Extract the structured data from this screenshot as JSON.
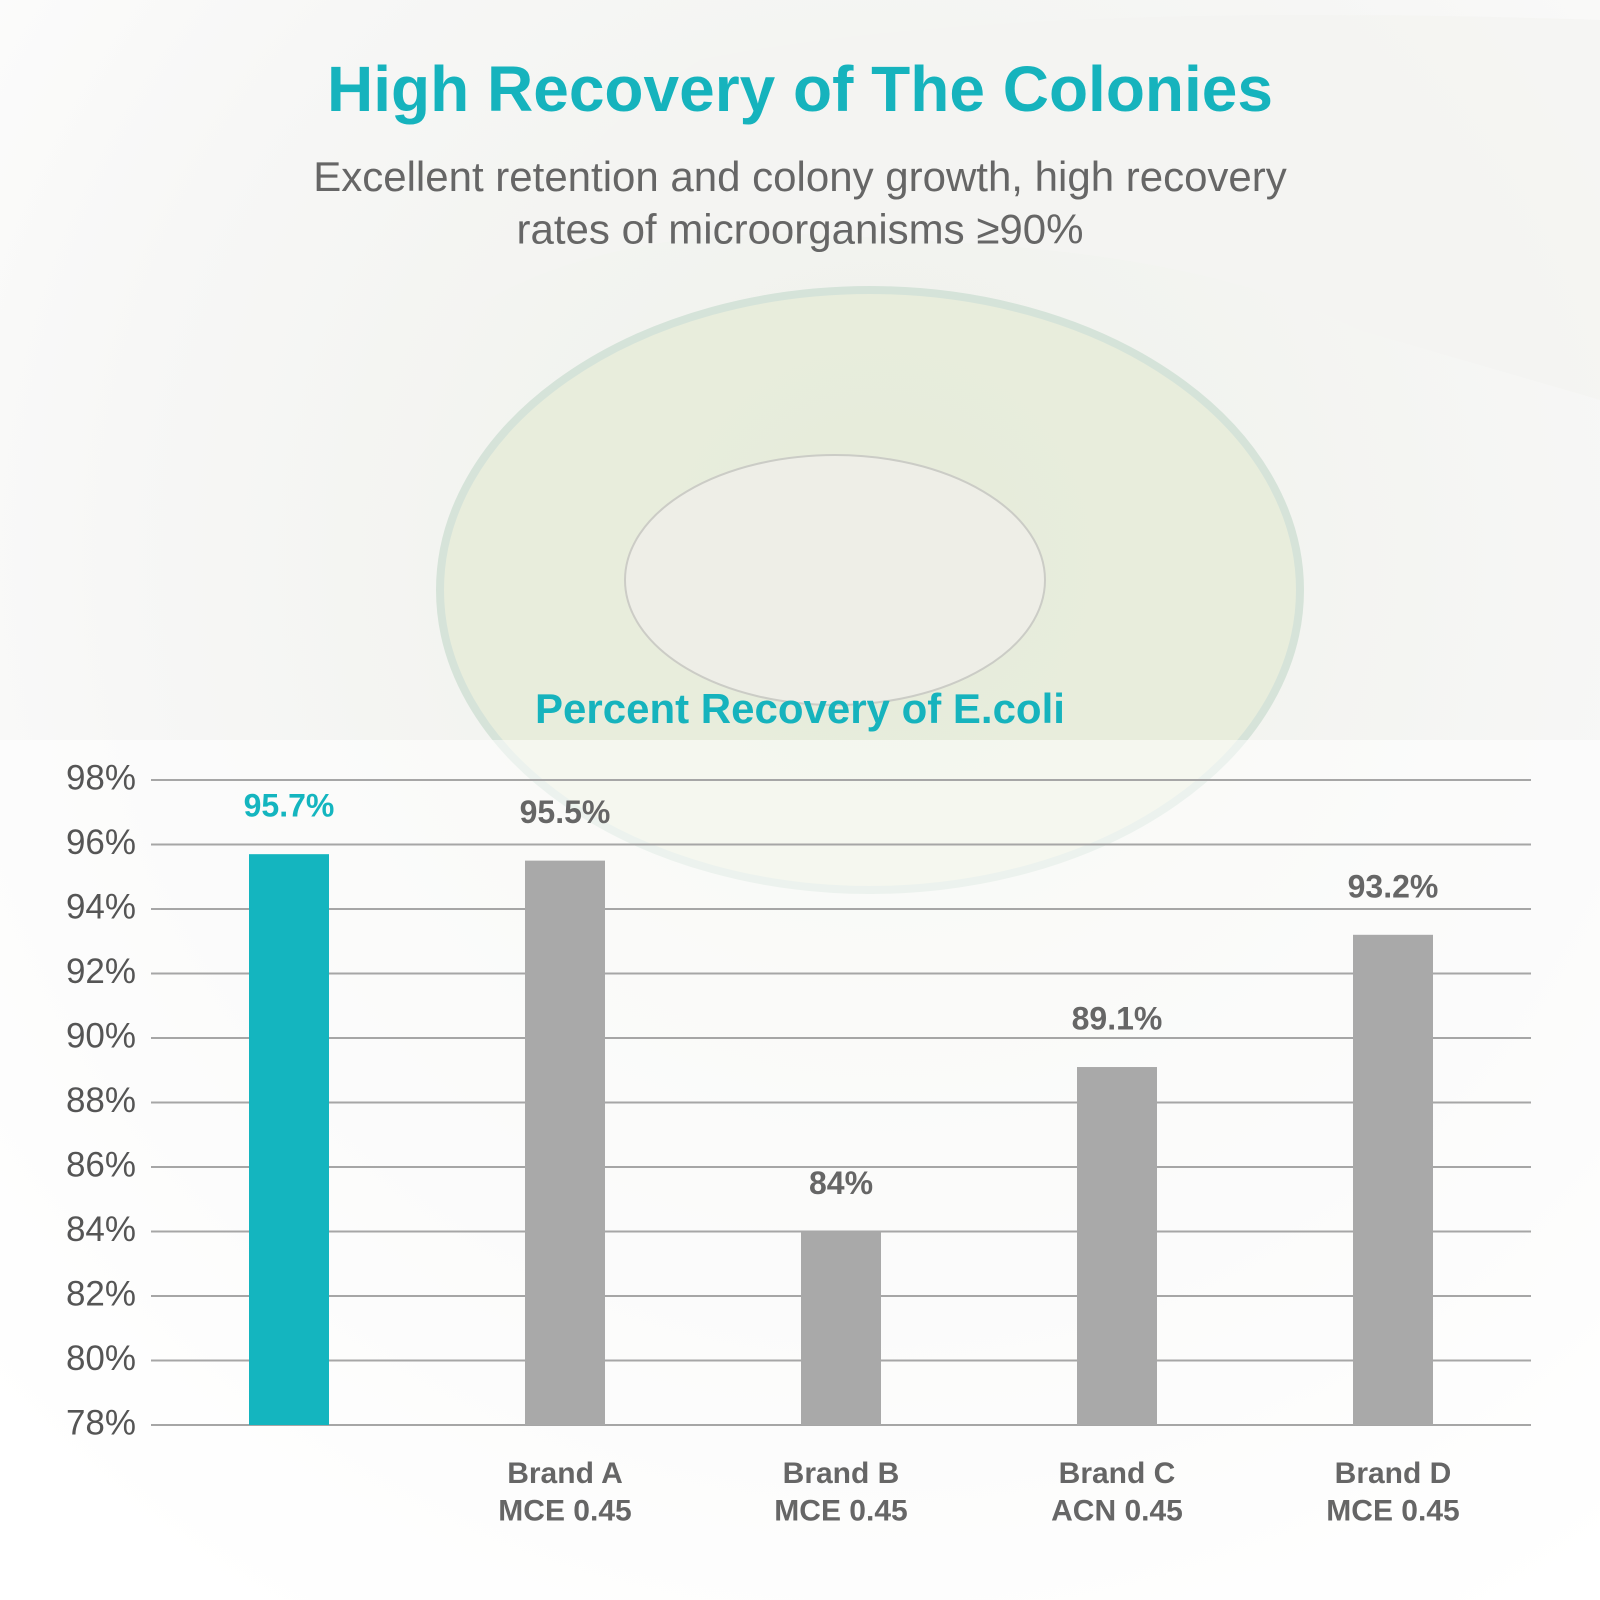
{
  "chart_data": {
    "type": "bar",
    "title": "High Recovery of The Colonies",
    "subtitle": "Excellent retention and colony growth, high recovery\nrates of microorganisms ≥90%",
    "chart_title": "Percent Recovery of E.coli",
    "categories": [
      null,
      "Brand A\nMCE 0.45",
      "Brand B\nMCE 0.45",
      "Brand C\nACN 0.45",
      "Brand D\nMCE 0.45"
    ],
    "values": [
      95.7,
      95.5,
      84,
      89.1,
      93.2
    ],
    "value_labels": [
      "95.7%",
      "95.5%",
      "84%",
      "89.1%",
      "93.2%"
    ],
    "colors": [
      "#14b5bf",
      "#a9a9a9",
      "#a9a9a9",
      "#a9a9a9",
      "#a9a9a9"
    ],
    "ylim": [
      78,
      98
    ],
    "yticks": [
      {
        "value": 78,
        "label": "78%"
      },
      {
        "value": 80,
        "label": "80%"
      },
      {
        "value": 82,
        "label": "82%"
      },
      {
        "value": 84,
        "label": "84%"
      },
      {
        "value": 86,
        "label": "86%"
      },
      {
        "value": 88,
        "label": "88%"
      },
      {
        "value": 90,
        "label": "90%"
      },
      {
        "value": 92,
        "label": "92%"
      },
      {
        "value": 94,
        "label": "94%"
      },
      {
        "value": 96,
        "label": "96%"
      },
      {
        "value": 98,
        "label": "98%"
      }
    ],
    "grid": true
  }
}
